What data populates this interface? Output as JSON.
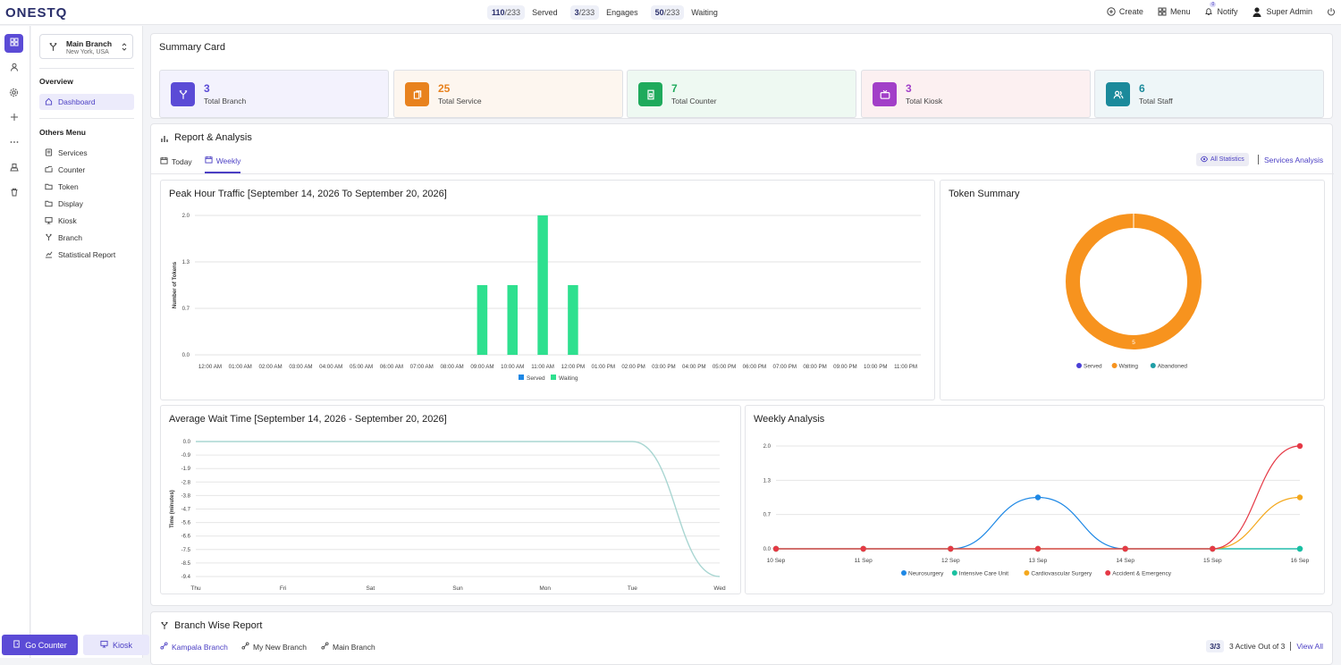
{
  "app": {
    "logo": "ONESTQ"
  },
  "header": {
    "served": {
      "value": "110",
      "total": "/233",
      "label": "Served"
    },
    "engages": {
      "value": "3",
      "total": "/233",
      "label": "Engages"
    },
    "waiting": {
      "value": "50",
      "total": "/233",
      "label": "Waiting"
    },
    "create_label": "Create",
    "menu_label": "Menu",
    "notify_label": "Notify",
    "notify_badge": "0",
    "user_name": "Super Admin"
  },
  "sidebar": {
    "branch_name": "Main Branch",
    "branch_location": "New York, USA",
    "overview_heading": "Overview",
    "dashboard_label": "Dashboard",
    "others_heading": "Others Menu",
    "items": [
      {
        "label": "Services",
        "icon": "services-icon"
      },
      {
        "label": "Counter",
        "icon": "counter-icon"
      },
      {
        "label": "Token",
        "icon": "token-icon"
      },
      {
        "label": "Display",
        "icon": "display-icon"
      },
      {
        "label": "Kiosk",
        "icon": "kiosk-icon"
      },
      {
        "label": "Branch",
        "icon": "branch-icon"
      },
      {
        "label": "Statistical Report",
        "icon": "report-icon"
      }
    ],
    "go_counter_label": "Go Counter",
    "kiosk_label": "Kiosk"
  },
  "summary": {
    "title": "Summary Card",
    "cards": [
      {
        "value": "3",
        "label": "Total Branch",
        "color": "#5b4bd6",
        "bg": "#f3f2fd"
      },
      {
        "value": "25",
        "label": "Total Service",
        "color": "#e8821e",
        "bg": "#fdf6ef"
      },
      {
        "value": "7",
        "label": "Total Counter",
        "color": "#1faa5c",
        "bg": "#eef9f2"
      },
      {
        "value": "3",
        "label": "Total Kiosk",
        "color": "#a23fc8",
        "bg": "#fcf0f1"
      },
      {
        "value": "6",
        "label": "Total Staff",
        "color": "#1b8a9b",
        "bg": "#eef6f8"
      }
    ]
  },
  "report": {
    "title": "Report & Analysis",
    "tab_today": "Today",
    "tab_weekly": "Weekly",
    "all_statistics": "All Statistics",
    "services_analysis": "Services Analysis"
  },
  "chart_data": [
    {
      "type": "bar",
      "title": "Peak Hour Traffic [September 14, 2026 To September 20, 2026]",
      "ylabel": "Number of Tokens",
      "ylim": [
        0,
        2.0
      ],
      "yticks": [
        "2.0",
        "1.3",
        "0.7",
        "0.0"
      ],
      "categories": [
        "12:00 AM",
        "01:00 AM",
        "02:00 AM",
        "03:00 AM",
        "04:00 AM",
        "05:00 AM",
        "06:00 AM",
        "07:00 AM",
        "08:00 AM",
        "09:00 AM",
        "10:00 AM",
        "11:00 AM",
        "12:00 PM",
        "01:00 PM",
        "02:00 PM",
        "03:00 PM",
        "04:00 PM",
        "05:00 PM",
        "06:00 PM",
        "07:00 PM",
        "08:00 PM",
        "09:00 PM",
        "10:00 PM",
        "11:00 PM"
      ],
      "series": [
        {
          "name": "Served",
          "color": "#1e88e5",
          "values": [
            0,
            0,
            0,
            0,
            0,
            0,
            0,
            0,
            0,
            0,
            0,
            0,
            0,
            0,
            0,
            0,
            0,
            0,
            0,
            0,
            0,
            0,
            0,
            0
          ]
        },
        {
          "name": "Waiting",
          "color": "#2ee08f",
          "values": [
            0,
            0,
            0,
            0,
            0,
            0,
            0,
            0,
            0,
            1,
            1,
            2,
            1,
            0,
            0,
            0,
            0,
            0,
            0,
            0,
            0,
            0,
            0,
            0
          ]
        }
      ],
      "legend": "bottom"
    },
    {
      "type": "pie",
      "title": "Token Summary",
      "slices": [
        {
          "name": "Served",
          "value": 0,
          "color": "#4a3fd6"
        },
        {
          "name": "Waiting",
          "value": 5,
          "color": "#f7931e"
        },
        {
          "name": "Abandoned",
          "value": 0,
          "color": "#1f9ea6"
        }
      ],
      "data_label": "5",
      "legend": "bottom"
    },
    {
      "type": "line",
      "title": "Average Wait Time [September 14, 2026 - September 20, 2026]",
      "ylabel": "Time (minutes)",
      "yticks": [
        "0.0",
        "-0.9",
        "-1.9",
        "-2.8",
        "-3.8",
        "-4.7",
        "-5.6",
        "-6.6",
        "-7.5",
        "-8.5",
        "-9.4"
      ],
      "ylim": [
        -9.4,
        0
      ],
      "categories": [
        "Thu",
        "Fri",
        "Sat",
        "Sun",
        "Mon",
        "Tue",
        "Wed"
      ],
      "series": [
        {
          "name": "",
          "color": "#a9d6d2",
          "values": [
            0,
            0,
            0,
            0,
            0,
            0,
            -9.4
          ]
        }
      ]
    },
    {
      "type": "line",
      "title": "Weekly Analysis",
      "yticks": [
        "2.0",
        "1.3",
        "0.7",
        "0.0"
      ],
      "ylim": [
        0,
        2.0
      ],
      "categories": [
        "10 Sep",
        "11 Sep",
        "12 Sep",
        "13 Sep",
        "14 Sep",
        "15 Sep",
        "16 Sep"
      ],
      "series": [
        {
          "name": "Neurosurgery",
          "color": "#1e88e5",
          "values": [
            0,
            0,
            0,
            1,
            0,
            0,
            0
          ]
        },
        {
          "name": "Intensive Care Unit",
          "color": "#19c1a0",
          "values": [
            0,
            0,
            0,
            0,
            0,
            0,
            0
          ]
        },
        {
          "name": "Cardiovascular Surgery",
          "color": "#f4a81d",
          "values": [
            0,
            0,
            0,
            0,
            0,
            0,
            1
          ]
        },
        {
          "name": "Accident & Emergency",
          "color": "#e53946",
          "values": [
            0,
            0,
            0,
            0,
            0,
            0,
            2
          ]
        }
      ],
      "legend": "bottom"
    }
  ],
  "branch_report": {
    "title": "Branch Wise Report",
    "tabs": [
      "Kampala Branch",
      "My New Branch",
      "Main Branch"
    ],
    "active_count": "3/3",
    "active_text": "3 Active Out of 3",
    "view_all": "View All"
  }
}
